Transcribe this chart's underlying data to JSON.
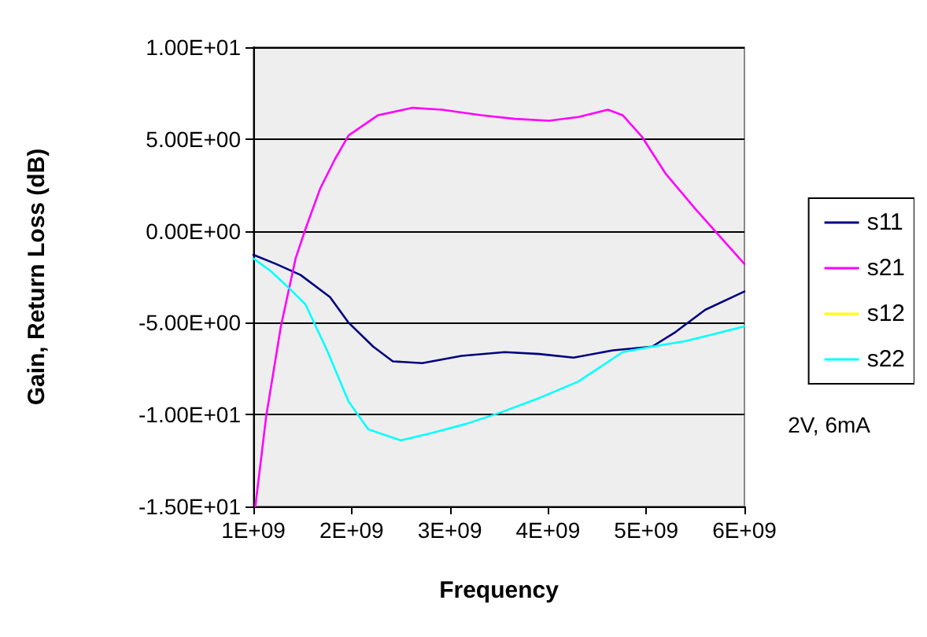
{
  "chart_data": {
    "type": "line",
    "xlabel": "Frequency",
    "ylabel": "Gain, Return Loss (dB)",
    "xlim": [
      1000000000.0,
      6000000000.0
    ],
    "xticks": [
      {
        "value": 1000000000.0,
        "label": "1E+09"
      },
      {
        "value": 2000000000.0,
        "label": "2E+09"
      },
      {
        "value": 3000000000.0,
        "label": "3E+09"
      },
      {
        "value": 4000000000.0,
        "label": "4E+09"
      },
      {
        "value": 5000000000.0,
        "label": "5E+09"
      },
      {
        "value": 6000000000.0,
        "label": "6E+09"
      }
    ],
    "ylim": [
      -15,
      10
    ],
    "yticks": [
      {
        "value": -15,
        "label": "-1.50E+01"
      },
      {
        "value": -10,
        "label": "-1.00E+01"
      },
      {
        "value": -5,
        "label": "-5.00E+00"
      },
      {
        "value": 0,
        "label": "0.00E+00"
      },
      {
        "value": 5,
        "label": "5.00E+00"
      },
      {
        "value": 10,
        "label": "1.00E+01"
      }
    ],
    "grid": "y",
    "legend": "right",
    "marker": "none",
    "line_style": "solid",
    "annotations": [
      "2V, 6mA"
    ],
    "series": [
      {
        "name": "s11",
        "color": "#000080",
        "x": [
          1000000000.0,
          1230000000.0,
          1480000000.0,
          1780000000.0,
          1970000000.0,
          2220000000.0,
          2420000000.0,
          2720000000.0,
          3120000000.0,
          3560000000.0,
          3910000000.0,
          4260000000.0,
          4660000000.0,
          5060000000.0,
          5300000000.0,
          5600000000.0,
          6000000000.0
        ],
        "values": [
          -1.3,
          -1.8,
          -2.4,
          -3.6,
          -5.0,
          -6.3,
          -7.1,
          -7.2,
          -6.8,
          -6.6,
          -6.7,
          -6.9,
          -6.5,
          -6.3,
          -5.5,
          -4.3,
          -3.3
        ]
      },
      {
        "name": "s21",
        "color": "#ff00ff",
        "x": [
          1020000000.0,
          1130000000.0,
          1280000000.0,
          1430000000.0,
          1530000000.0,
          1680000000.0,
          1830000000.0,
          1970000000.0,
          2270000000.0,
          2620000000.0,
          2920000000.0,
          3320000000.0,
          3660000000.0,
          4010000000.0,
          4310000000.0,
          4610000000.0,
          4760000000.0,
          4960000000.0,
          5200000000.0,
          5500000000.0,
          5750000000.0,
          6000000000.0
        ],
        "values": [
          -15.0,
          -10.1,
          -5.2,
          -1.5,
          0.1,
          2.3,
          3.9,
          5.2,
          6.3,
          6.7,
          6.6,
          6.3,
          6.1,
          6.0,
          6.2,
          6.6,
          6.3,
          5.1,
          3.1,
          1.2,
          -0.3,
          -1.8
        ]
      },
      {
        "name": "s12",
        "color": "#ffff00"
      },
      {
        "name": "s22",
        "color": "#00ffff",
        "x": [
          1000000000.0,
          1180000000.0,
          1380000000.0,
          1530000000.0,
          1750000000.0,
          1970000000.0,
          2170000000.0,
          2500000000.0,
          2820000000.0,
          3170000000.0,
          3510000000.0,
          3910000000.0,
          4310000000.0,
          4760000000.0,
          5060000000.0,
          5400000000.0,
          5700000000.0,
          6000000000.0
        ],
        "values": [
          -1.5,
          -2.2,
          -3.2,
          -4.0,
          -6.5,
          -9.3,
          -10.8,
          -11.4,
          -11.0,
          -10.5,
          -9.9,
          -9.1,
          -8.2,
          -6.6,
          -6.3,
          -6.0,
          -5.6,
          -5.2
        ]
      }
    ]
  }
}
